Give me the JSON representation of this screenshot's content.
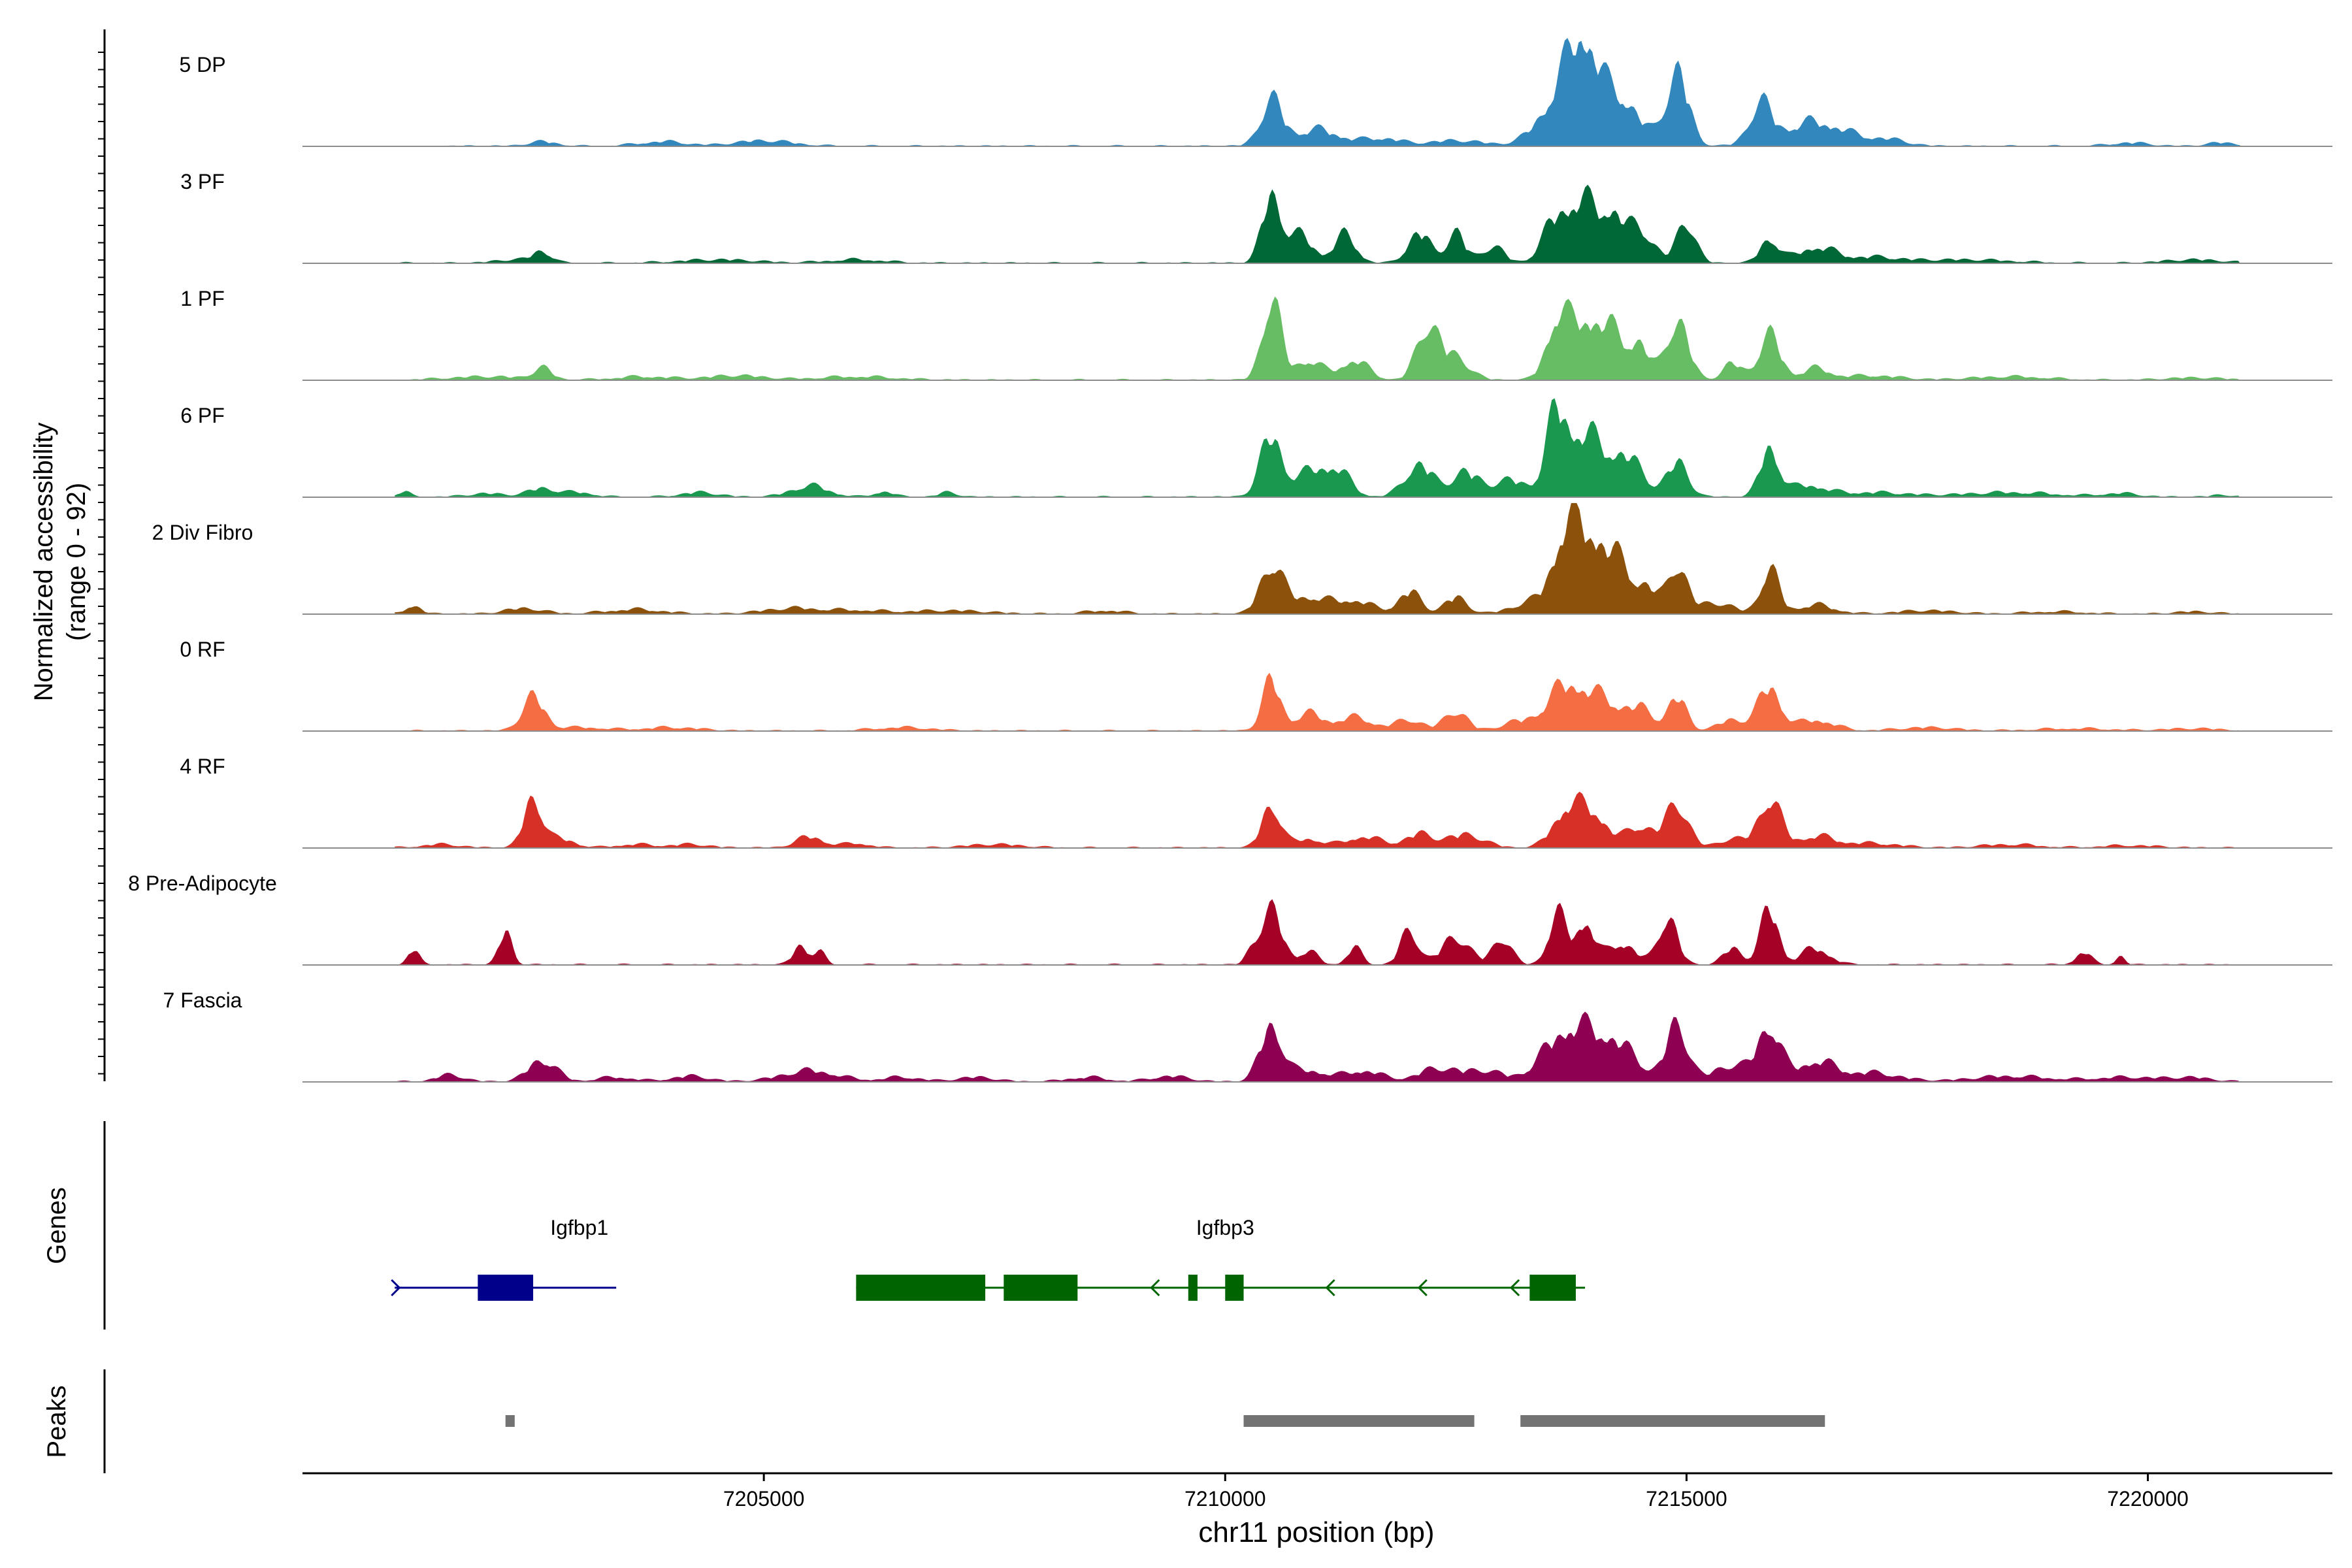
{
  "chart_data": {
    "type": "area",
    "title": "",
    "xlabel": "chr11 position (bp)",
    "ylabel": "Normalized accessibility",
    "ylabel_sub": "(range 0 - 92)",
    "xlim": [
      7200000,
      7222000
    ],
    "ylim": [
      0,
      92
    ],
    "x_ticks": [
      {
        "value": 7205000,
        "label": "7205000"
      },
      {
        "value": 7210000,
        "label": "7210000"
      },
      {
        "value": 7215000,
        "label": "7215000"
      },
      {
        "value": 7220000,
        "label": "7220000"
      }
    ],
    "coverage_tracks": [
      {
        "name": "5 DP",
        "color": "#3288BD",
        "start": 7201500,
        "end": 7221000,
        "peaks": [
          [
            7202600,
            4,
            150
          ],
          [
            7203900,
            4,
            250
          ],
          [
            7205000,
            5,
            300
          ],
          [
            7210500,
            40,
            120
          ],
          [
            7211000,
            15,
            250
          ],
          [
            7211700,
            7,
            200
          ],
          [
            7212500,
            5,
            300
          ],
          [
            7213700,
            55,
            250
          ],
          [
            7213900,
            60,
            150
          ],
          [
            7214300,
            42,
            200
          ],
          [
            7214900,
            70,
            120
          ],
          [
            7215800,
            35,
            120
          ],
          [
            7216400,
            22,
            350
          ],
          [
            7217200,
            5,
            200
          ],
          [
            7219800,
            3,
            200
          ],
          [
            7220800,
            3,
            150
          ]
        ]
      },
      {
        "name": "3 PF",
        "color": "#006837",
        "start": 7201000,
        "end": 7221000,
        "peaks": [
          [
            7202300,
            3,
            200
          ],
          [
            7202600,
            10,
            100
          ],
          [
            7204500,
            3,
            400
          ],
          [
            7206000,
            3,
            300
          ],
          [
            7210500,
            60,
            100
          ],
          [
            7210800,
            25,
            150
          ],
          [
            7211300,
            25,
            120
          ],
          [
            7212100,
            28,
            120
          ],
          [
            7212500,
            28,
            100
          ],
          [
            7212900,
            15,
            120
          ],
          [
            7213600,
            40,
            150
          ],
          [
            7213900,
            50,
            150
          ],
          [
            7214200,
            40,
            120
          ],
          [
            7214500,
            30,
            150
          ],
          [
            7215000,
            38,
            100
          ],
          [
            7215900,
            22,
            100
          ],
          [
            7216400,
            14,
            200
          ],
          [
            7217000,
            5,
            300
          ],
          [
            7218000,
            3,
            500
          ],
          [
            7220500,
            3,
            300
          ]
        ]
      },
      {
        "name": "1 PF",
        "color": "#66BD63",
        "start": 7201000,
        "end": 7221000,
        "peaks": [
          [
            7202000,
            3,
            400
          ],
          [
            7202600,
            10,
            100
          ],
          [
            7203700,
            3,
            300
          ],
          [
            7204700,
            4,
            300
          ],
          [
            7206000,
            3,
            400
          ],
          [
            7210500,
            75,
            100
          ],
          [
            7210900,
            18,
            150
          ],
          [
            7211400,
            18,
            150
          ],
          [
            7212200,
            50,
            120
          ],
          [
            7212500,
            20,
            150
          ],
          [
            7213600,
            55,
            120
          ],
          [
            7213900,
            50,
            150
          ],
          [
            7214200,
            40,
            150
          ],
          [
            7214500,
            30,
            100
          ],
          [
            7214900,
            55,
            120
          ],
          [
            7215500,
            15,
            100
          ],
          [
            7215900,
            40,
            120
          ],
          [
            7216400,
            10,
            150
          ],
          [
            7217000,
            4,
            300
          ],
          [
            7218500,
            3,
            400
          ],
          [
            7220500,
            2,
            300
          ]
        ]
      },
      {
        "name": "6 PF",
        "color": "#1A9850",
        "start": 7201000,
        "end": 7221000,
        "peaks": [
          [
            7201100,
            5,
            60
          ],
          [
            7202000,
            3,
            200
          ],
          [
            7202600,
            8,
            150
          ],
          [
            7203000,
            4,
            150
          ],
          [
            7204300,
            4,
            200
          ],
          [
            7205500,
            10,
            200
          ],
          [
            7206300,
            5,
            100
          ],
          [
            7207000,
            4,
            100
          ],
          [
            7210500,
            55,
            120
          ],
          [
            7210900,
            20,
            150
          ],
          [
            7211200,
            25,
            150
          ],
          [
            7212100,
            30,
            150
          ],
          [
            7212600,
            22,
            150
          ],
          [
            7213100,
            15,
            200
          ],
          [
            7213600,
            75,
            120
          ],
          [
            7213900,
            50,
            150
          ],
          [
            7214300,
            40,
            200
          ],
          [
            7214900,
            30,
            120
          ],
          [
            7215900,
            45,
            100
          ],
          [
            7216300,
            10,
            200
          ],
          [
            7217000,
            4,
            400
          ],
          [
            7218500,
            4,
            500
          ],
          [
            7219700,
            3,
            200
          ],
          [
            7220800,
            2,
            100
          ]
        ]
      },
      {
        "name": "2 Div Fibro",
        "color": "#8C510A",
        "start": 7201000,
        "end": 7221000,
        "peaks": [
          [
            7201200,
            8,
            80
          ],
          [
            7202400,
            5,
            200
          ],
          [
            7203600,
            4,
            300
          ],
          [
            7205300,
            5,
            300
          ],
          [
            7206000,
            3,
            300
          ],
          [
            7207000,
            3,
            400
          ],
          [
            7208700,
            3,
            200
          ],
          [
            7210500,
            45,
            120
          ],
          [
            7210900,
            15,
            200
          ],
          [
            7211400,
            12,
            200
          ],
          [
            7212000,
            20,
            120
          ],
          [
            7212500,
            15,
            120
          ],
          [
            7213300,
            10,
            200
          ],
          [
            7213700,
            75,
            150
          ],
          [
            7214000,
            60,
            150
          ],
          [
            7214300,
            40,
            150
          ],
          [
            7214600,
            20,
            100
          ],
          [
            7214900,
            45,
            100
          ],
          [
            7215300,
            10,
            200
          ],
          [
            7215900,
            40,
            100
          ],
          [
            7216400,
            8,
            200
          ],
          [
            7217600,
            3,
            300
          ],
          [
            7219000,
            2,
            300
          ],
          [
            7220500,
            2,
            200
          ]
        ]
      },
      {
        "name": "0 RF",
        "color": "#F46D43",
        "start": 7201000,
        "end": 7221000,
        "peaks": [
          [
            7202500,
            30,
            120
          ],
          [
            7203000,
            3,
            300
          ],
          [
            7204000,
            3,
            300
          ],
          [
            7206500,
            3,
            300
          ],
          [
            7210500,
            45,
            100
          ],
          [
            7210900,
            15,
            150
          ],
          [
            7211400,
            12,
            200
          ],
          [
            7212000,
            10,
            150
          ],
          [
            7212500,
            18,
            120
          ],
          [
            7213200,
            8,
            200
          ],
          [
            7213700,
            40,
            200
          ],
          [
            7214100,
            25,
            200
          ],
          [
            7214500,
            18,
            150
          ],
          [
            7214900,
            30,
            100
          ],
          [
            7215500,
            10,
            150
          ],
          [
            7215900,
            40,
            120
          ],
          [
            7216400,
            10,
            200
          ],
          [
            7217600,
            3,
            300
          ],
          [
            7219200,
            2,
            400
          ],
          [
            7220500,
            2,
            300
          ]
        ]
      },
      {
        "name": "4 RF",
        "color": "#D73027",
        "start": 7201000,
        "end": 7221000,
        "peaks": [
          [
            7201500,
            3,
            200
          ],
          [
            7202500,
            45,
            100
          ],
          [
            7202800,
            8,
            150
          ],
          [
            7203600,
            3,
            200
          ],
          [
            7204200,
            3,
            200
          ],
          [
            7205500,
            10,
            150
          ],
          [
            7206000,
            4,
            150
          ],
          [
            7207500,
            3,
            300
          ],
          [
            7210500,
            40,
            100
          ],
          [
            7210900,
            8,
            150
          ],
          [
            7211500,
            10,
            200
          ],
          [
            7212100,
            12,
            150
          ],
          [
            7212600,
            12,
            200
          ],
          [
            7213700,
            35,
            150
          ],
          [
            7214000,
            30,
            150
          ],
          [
            7214500,
            20,
            150
          ],
          [
            7214900,
            40,
            120
          ],
          [
            7215500,
            8,
            150
          ],
          [
            7215900,
            45,
            120
          ],
          [
            7216400,
            10,
            200
          ],
          [
            7217000,
            4,
            300
          ],
          [
            7218500,
            3,
            300
          ],
          [
            7219800,
            2,
            300
          ]
        ]
      },
      {
        "name": "8 Pre-Adipocyte",
        "color": "#A50026",
        "start": 7201000,
        "end": 7221000,
        "peaks": [
          [
            7201200,
            14,
            60
          ],
          [
            7202200,
            30,
            70
          ],
          [
            7205400,
            18,
            80
          ],
          [
            7205600,
            12,
            60
          ],
          [
            7210300,
            10,
            70
          ],
          [
            7210500,
            48,
            120
          ],
          [
            7210900,
            12,
            100
          ],
          [
            7211400,
            15,
            80
          ],
          [
            7212000,
            30,
            100
          ],
          [
            7212500,
            25,
            150
          ],
          [
            7213000,
            25,
            100
          ],
          [
            7213600,
            45,
            100
          ],
          [
            7213900,
            40,
            100
          ],
          [
            7214300,
            20,
            150
          ],
          [
            7214800,
            45,
            100
          ],
          [
            7215500,
            15,
            100
          ],
          [
            7215900,
            50,
            100
          ],
          [
            7216400,
            15,
            150
          ],
          [
            7219300,
            12,
            80
          ],
          [
            7219700,
            8,
            50
          ]
        ]
      },
      {
        "name": "7 Fascia",
        "color": "#8E0152",
        "start": 7201000,
        "end": 7221000,
        "peaks": [
          [
            7201600,
            6,
            150
          ],
          [
            7202600,
            20,
            150
          ],
          [
            7203400,
            4,
            200
          ],
          [
            7204200,
            5,
            200
          ],
          [
            7205500,
            10,
            300
          ],
          [
            7206500,
            4,
            200
          ],
          [
            7207300,
            4,
            200
          ],
          [
            7208500,
            4,
            200
          ],
          [
            7209400,
            5,
            200
          ],
          [
            7210500,
            50,
            120
          ],
          [
            7210900,
            10,
            200
          ],
          [
            7211500,
            10,
            200
          ],
          [
            7212300,
            12,
            200
          ],
          [
            7212800,
            10,
            200
          ],
          [
            7213700,
            45,
            250
          ],
          [
            7214200,
            35,
            250
          ],
          [
            7214900,
            50,
            120
          ],
          [
            7215500,
            15,
            200
          ],
          [
            7215900,
            50,
            120
          ],
          [
            7216400,
            18,
            200
          ],
          [
            7217000,
            8,
            300
          ],
          [
            7218500,
            5,
            400
          ],
          [
            7219800,
            4,
            400
          ],
          [
            7220500,
            3,
            200
          ]
        ]
      }
    ],
    "genes_track": {
      "label": "Genes",
      "genes": [
        {
          "name": "Igfbp1",
          "strand": "+",
          "color": "#00008B",
          "label_pos": 7203000,
          "line": [
            7201000,
            7203400
          ],
          "arrows": [
            7201050
          ],
          "exons": [
            [
              7201900,
              7202500
            ]
          ]
        },
        {
          "name": "Igfbp3",
          "strand": "-",
          "color": "#006400",
          "label_pos": 7210000,
          "line": [
            7206000,
            7213900
          ],
          "arrows": [
            7209200,
            7211100,
            7212100,
            7213100
          ],
          "exons": [
            [
              7206000,
              7207400
            ],
            [
              7207600,
              7208400
            ],
            [
              7209600,
              7209700
            ],
            [
              7210000,
              7210200
            ],
            [
              7213300,
              7213800
            ]
          ]
        }
      ]
    },
    "peaks_track": {
      "label": "Peaks",
      "color": "#737373",
      "regions": [
        [
          7202200,
          7202300
        ],
        [
          7210200,
          7212700
        ],
        [
          7213200,
          7216500
        ]
      ]
    }
  }
}
